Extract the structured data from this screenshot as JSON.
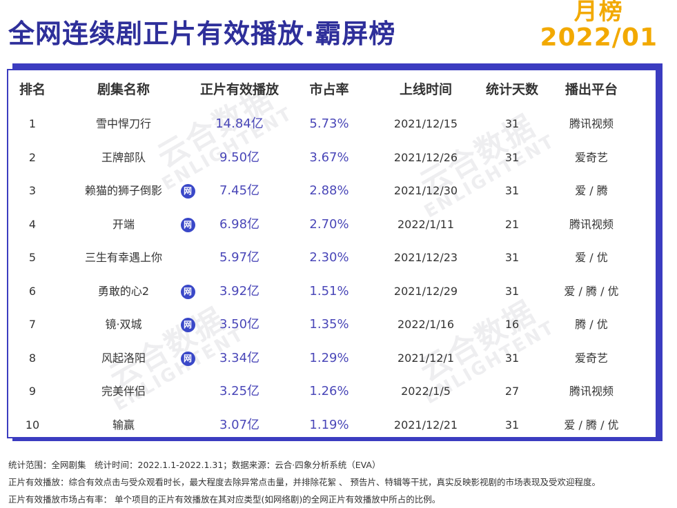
{
  "title": "全网连续剧正片有效播放·霸屏榜",
  "badge": {
    "line1": "月榜",
    "line2": "2022/01"
  },
  "watermark": {
    "cn": "云合数据",
    "en": "ENLIGHTENT"
  },
  "net_badge_label": "网",
  "table": {
    "headers": [
      "排名",
      "剧集名称",
      "正片有效播放",
      "市占率",
      "上线时间",
      "统计天数",
      "播出平台"
    ],
    "rows": [
      {
        "rank": "1",
        "name": "雪中悍刀行",
        "net": false,
        "plays": "14.84亿",
        "share": "5.73%",
        "date": "2021/12/15",
        "days": "31",
        "platform": "腾讯视频"
      },
      {
        "rank": "2",
        "name": "王牌部队",
        "net": false,
        "plays": "9.50亿",
        "share": "3.67%",
        "date": "2021/12/26",
        "days": "31",
        "platform": "爱奇艺"
      },
      {
        "rank": "3",
        "name": "赖猫的狮子倒影",
        "net": true,
        "plays": "7.45亿",
        "share": "2.88%",
        "date": "2021/12/30",
        "days": "31",
        "platform": "爱 / 腾"
      },
      {
        "rank": "4",
        "name": "开端",
        "net": true,
        "plays": "6.98亿",
        "share": "2.70%",
        "date": "2022/1/11",
        "days": "21",
        "platform": "腾讯视频"
      },
      {
        "rank": "5",
        "name": "三生有幸遇上你",
        "net": false,
        "plays": "5.97亿",
        "share": "2.30%",
        "date": "2021/12/23",
        "days": "31",
        "platform": "爱 / 优"
      },
      {
        "rank": "6",
        "name": "勇敢的心2",
        "net": true,
        "plays": "3.92亿",
        "share": "1.51%",
        "date": "2021/12/29",
        "days": "31",
        "platform": "爱 / 腾 / 优"
      },
      {
        "rank": "7",
        "name": "镜·双城",
        "net": true,
        "plays": "3.50亿",
        "share": "1.35%",
        "date": "2022/1/16",
        "days": "16",
        "platform": "腾 / 优"
      },
      {
        "rank": "8",
        "name": "风起洛阳",
        "net": true,
        "plays": "3.34亿",
        "share": "1.29%",
        "date": "2021/12/1",
        "days": "31",
        "platform": "爱奇艺"
      },
      {
        "rank": "9",
        "name": "完美伴侣",
        "net": false,
        "plays": "3.25亿",
        "share": "1.26%",
        "date": "2022/1/5",
        "days": "27",
        "platform": "腾讯视频"
      },
      {
        "rank": "10",
        "name": "输赢",
        "net": false,
        "plays": "3.07亿",
        "share": "1.19%",
        "date": "2021/12/21",
        "days": "31",
        "platform": "爱 / 腾 / 优"
      }
    ]
  },
  "notes": [
    "统计范围：全网剧集　统计时间：2022.1.1-2022.1.31；数据来源：云合·四象分析系统（EVA）",
    "正片有效播放：综合有效点击与受众观看时长，最大程度去除异常点击量，并排除花絮 、 预告片、特辑等干扰，真实反映影视剧的市场表现及受欢迎程度。",
    "正片有效播放市场占有率： 单个项目的正片有效播放在其对应类型(如网络剧)的全网正片有效播放中所占的比例。"
  ]
}
